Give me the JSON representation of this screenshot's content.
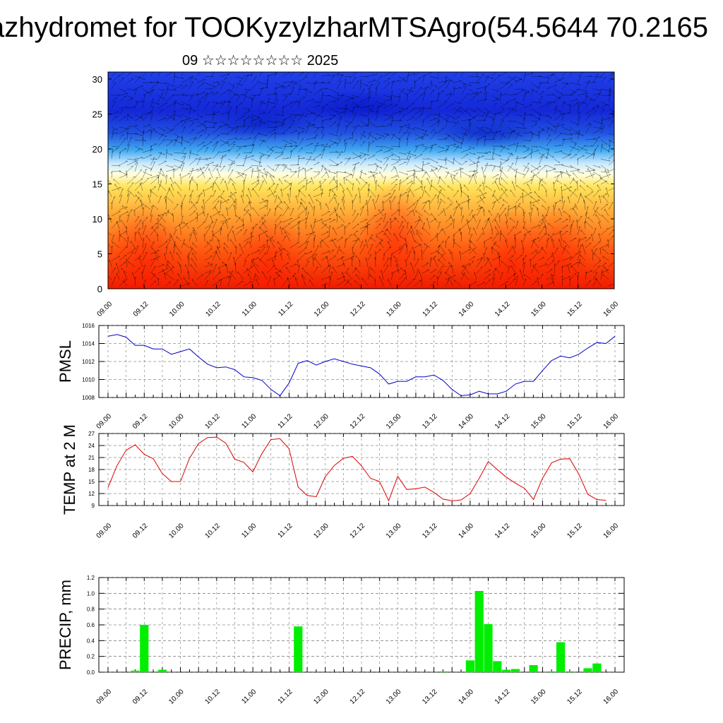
{
  "title": "azhydromet for TOOKyzylzharMTSAgro(54.5644 70.2165",
  "subtitle": "09 ☆☆☆☆☆☆☆☆ 2025",
  "x_ticks": [
    "09.00",
    "09.12",
    "10.00",
    "10.12",
    "11.00",
    "11.12",
    "12.00",
    "12.12",
    "13.00",
    "13.12",
    "14.00",
    "14.12",
    "15.00",
    "15.12",
    "16.00"
  ],
  "chart_data": [
    {
      "type": "heatmap",
      "title": "",
      "xlabel": "",
      "ylabel": "",
      "ylim": [
        0,
        31
      ],
      "y_ticks": [
        0,
        5,
        10,
        15,
        20,
        25,
        30
      ],
      "colors": {
        "low_levels": "#ff2000",
        "mid_levels": "#ffe040",
        "transition": "#ffffff",
        "high_levels": "#1020e0"
      }
    },
    {
      "type": "line",
      "ylabel": "PMSL",
      "ylim": [
        1008,
        1016
      ],
      "y_ticks": [
        1008,
        1010,
        1012,
        1014,
        1016
      ],
      "color": "#0000cc",
      "x_start": 0,
      "x_step_hours": 3,
      "values": [
        1014.8,
        1015.0,
        1014.7,
        1013.8,
        1013.8,
        1013.4,
        1013.4,
        1012.8,
        1013.1,
        1013.4,
        1012.5,
        1011.7,
        1011.3,
        1011.4,
        1011.1,
        1010.3,
        1010.2,
        1009.9,
        1008.9,
        1008.2,
        1009.6,
        1011.8,
        1012.1,
        1011.6,
        1012.0,
        1012.3,
        1012.0,
        1011.7,
        1011.5,
        1011.3,
        1010.6,
        1009.5,
        1009.8,
        1009.8,
        1010.3,
        1010.3,
        1010.5,
        1009.9,
        1008.9,
        1008.2,
        1008.3,
        1008.7,
        1008.4,
        1008.4,
        1008.7,
        1009.5,
        1009.8,
        1009.8,
        1011.0,
        1012.1,
        1012.6,
        1012.4,
        1012.8,
        1013.5,
        1014.1,
        1014.0,
        1014.8
      ]
    },
    {
      "type": "line",
      "ylabel": "TEMP at 2 M",
      "ylim": [
        9,
        27
      ],
      "y_ticks": [
        9,
        12,
        15,
        18,
        21,
        24,
        27
      ],
      "color": "#dd0000",
      "x_start": 0,
      "x_step_hours": 3,
      "values": [
        13.5,
        19.0,
        22.8,
        24.2,
        21.8,
        20.7,
        17.0,
        15.0,
        15.0,
        20.8,
        24.5,
        26.0,
        26.1,
        24.6,
        20.6,
        19.8,
        17.4,
        22.0,
        25.5,
        25.7,
        23.2,
        13.6,
        11.5,
        11.2,
        16.2,
        19.0,
        20.8,
        21.3,
        18.9,
        15.8,
        15.0,
        10.2,
        16.3,
        13.0,
        13.2,
        13.6,
        12.3,
        10.6,
        10.2,
        10.4,
        12.0,
        15.8,
        20.0,
        18.0,
        16.1,
        14.6,
        13.3,
        10.5,
        15.8,
        19.7,
        20.6,
        20.7,
        16.9,
        11.8,
        10.5,
        10.3
      ]
    },
    {
      "type": "bar",
      "ylabel": "PRECIP, mm",
      "ylim": [
        0,
        1.2
      ],
      "y_ticks": [
        "0.0",
        "0.2",
        "0.4",
        "0.6",
        "0.8",
        "1.0",
        "1.2"
      ],
      "color": "#00ee00",
      "x_start": 0,
      "x_step_hours": 3,
      "values": [
        0,
        0,
        0,
        0.02,
        0.6,
        0,
        0.03,
        0,
        0,
        0,
        0,
        0,
        0,
        0,
        0,
        0,
        0,
        0,
        0,
        0,
        0,
        0.58,
        0,
        0,
        0,
        0,
        0,
        0,
        0,
        0,
        0,
        0,
        0,
        0,
        0,
        0,
        0,
        0.01,
        0,
        0,
        0.15,
        1.03,
        0.61,
        0.14,
        0.03,
        0.04,
        0,
        0.09,
        0,
        0.01,
        0.38,
        0.01,
        0,
        0.05,
        0.11,
        0,
        0,
        0
      ]
    }
  ]
}
